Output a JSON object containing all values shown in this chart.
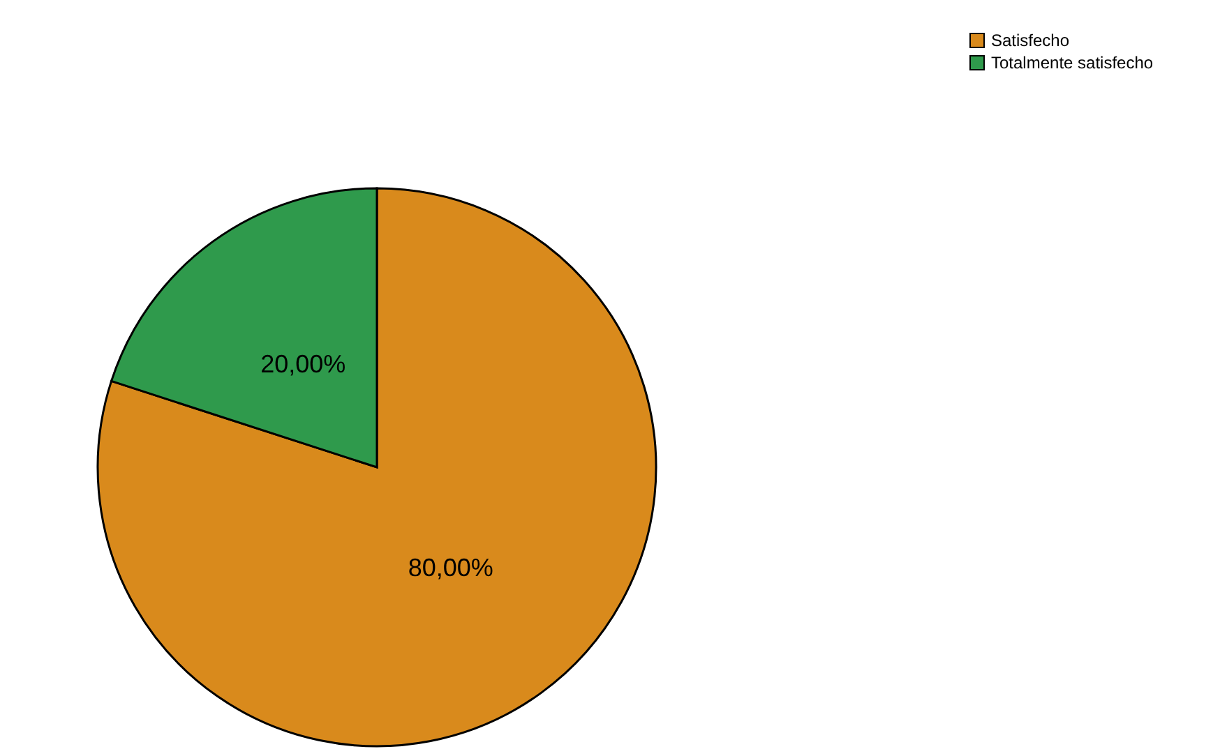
{
  "chart_data": {
    "type": "pie",
    "categories": [
      "Satisfecho",
      "Totalmente satisfecho"
    ],
    "values": [
      80,
      20
    ],
    "colors": [
      "#d98a1c",
      "#2f9a4c"
    ],
    "value_labels": [
      "80,00%",
      "20,00%"
    ],
    "legend": "top right"
  }
}
